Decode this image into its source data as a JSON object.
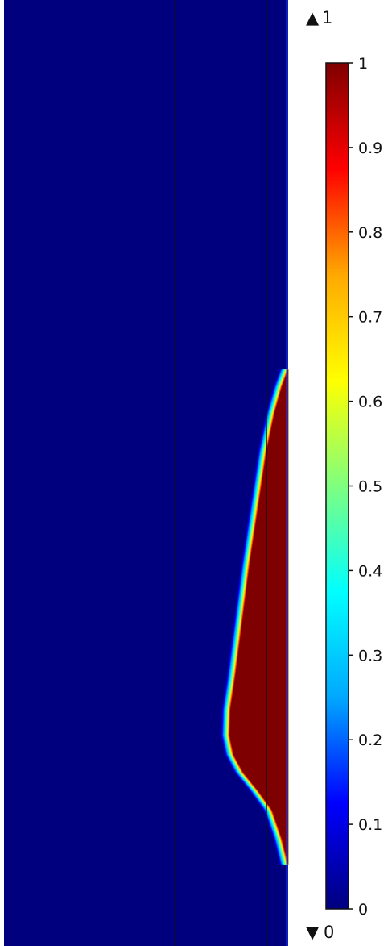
{
  "chart_data": {
    "type": "heatmap",
    "title": "",
    "xlabel": "",
    "ylabel": "",
    "colormap": "rainbow",
    "colormap_stops": [
      "#00007f",
      "#0000ff",
      "#00a8ff",
      "#00ffff",
      "#7fff7f",
      "#ffff00",
      "#ffa800",
      "#ff0000",
      "#7f0000"
    ],
    "background_value": 0,
    "filled_region_value": 1,
    "colorbar": {
      "range": [
        0,
        1
      ],
      "ticks": [
        0,
        0.1,
        0.2,
        0.3,
        0.4,
        0.5,
        0.6,
        0.7,
        0.8,
        0.9,
        1
      ],
      "tick_labels": [
        "0",
        "0.1",
        "0.2",
        "0.3",
        "0.4",
        "0.5",
        "0.6",
        "0.7",
        "0.8",
        "0.9",
        "1"
      ]
    },
    "max_indicator": {
      "symbol": "▲",
      "value": "1"
    },
    "min_indicator": {
      "symbol": "▼",
      "value": "0"
    }
  }
}
